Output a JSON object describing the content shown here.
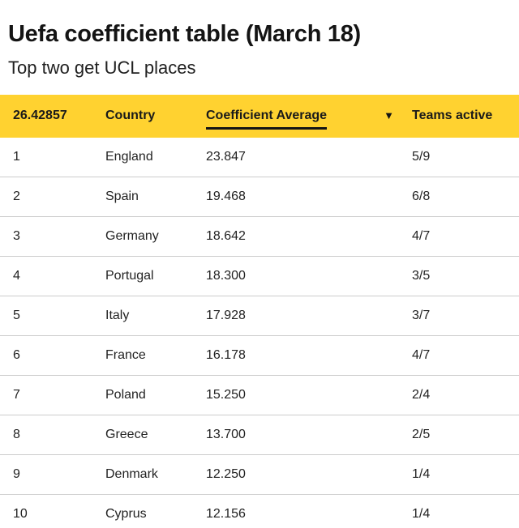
{
  "page": {
    "title": "Uefa coefficient table (March 18)",
    "subtitle": "Top two get UCL places"
  },
  "table": {
    "header": {
      "rank": "26.42857",
      "country": "Country",
      "coefficient": "Coefficient Average",
      "sort_icon": "▼",
      "teams": "Teams active"
    },
    "rows": [
      {
        "rank": "1",
        "country": "England",
        "coefficient": "23.847",
        "teams": "5/9"
      },
      {
        "rank": "2",
        "country": "Spain",
        "coefficient": "19.468",
        "teams": "6/8"
      },
      {
        "rank": "3",
        "country": "Germany",
        "coefficient": "18.642",
        "teams": "4/7"
      },
      {
        "rank": "4",
        "country": "Portugal",
        "coefficient": "18.300",
        "teams": "3/5"
      },
      {
        "rank": "5",
        "country": "Italy",
        "coefficient": "17.928",
        "teams": "3/7"
      },
      {
        "rank": "6",
        "country": "France",
        "coefficient": "16.178",
        "teams": "4/7"
      },
      {
        "rank": "7",
        "country": "Poland",
        "coefficient": "15.250",
        "teams": "2/4"
      },
      {
        "rank": "8",
        "country": "Greece",
        "coefficient": "13.700",
        "teams": "2/5"
      },
      {
        "rank": "9",
        "country": "Denmark",
        "coefficient": "12.250",
        "teams": "1/4"
      },
      {
        "rank": "10",
        "country": "Cyprus",
        "coefficient": "12.156",
        "teams": "1/4"
      }
    ],
    "colors": {
      "header_background": "#ffd230",
      "row_border": "#cccccc",
      "text": "#141414"
    }
  },
  "chart_data": {
    "type": "table",
    "title": "Uefa coefficient table (March 18)",
    "subtitle": "Top two get UCL places",
    "columns": [
      "26.42857",
      "Country",
      "Coefficient Average",
      "Teams active"
    ],
    "rows": [
      [
        "1",
        "England",
        "23.847",
        "5/9"
      ],
      [
        "2",
        "Spain",
        "19.468",
        "6/8"
      ],
      [
        "3",
        "Germany",
        "18.642",
        "4/7"
      ],
      [
        "4",
        "Portugal",
        "18.300",
        "3/5"
      ],
      [
        "5",
        "Italy",
        "17.928",
        "3/7"
      ],
      [
        "6",
        "France",
        "16.178",
        "4/7"
      ],
      [
        "7",
        "Poland",
        "15.250",
        "2/4"
      ],
      [
        "8",
        "Greece",
        "13.700",
        "2/5"
      ],
      [
        "9",
        "Denmark",
        "12.250",
        "1/4"
      ],
      [
        "10",
        "Cyprus",
        "12.156",
        "1/4"
      ]
    ],
    "sort": {
      "column": "Coefficient Average",
      "direction": "descending"
    },
    "layout_hints": {
      "header_background": "#ffd230",
      "grid": "horizontal-row-dividers"
    }
  }
}
